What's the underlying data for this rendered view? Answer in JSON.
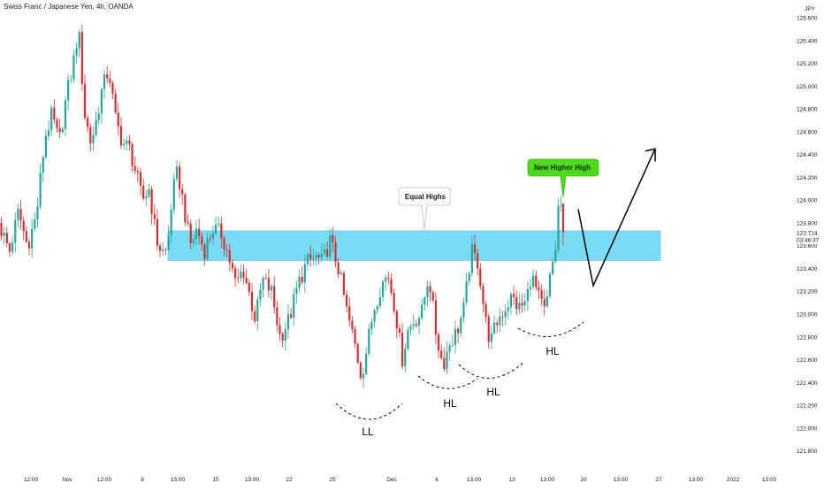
{
  "header": {
    "symbol_title": "Swiss Franc / Japanese Yen, 4h, OANDA"
  },
  "colors": {
    "up": "#26a69a",
    "down": "#d32f2f",
    "zone": "#4dd0f0",
    "callout_green": "#4cdb1c"
  },
  "price_axis": {
    "currency": "JPY",
    "ticks": [
      "125.600",
      "125.400",
      "125.200",
      "125.000",
      "124.800",
      "124.600",
      "124.400",
      "124.200",
      "124.000",
      "123.800",
      "123.600",
      "123.400",
      "123.200",
      "123.000",
      "122.800",
      "122.600",
      "122.400",
      "122.200",
      "122.000",
      "121.800"
    ],
    "last_price": "123.714",
    "countdown": "03:46:37"
  },
  "time_axis": [
    "12:00",
    "Nov",
    "12:00",
    "8",
    "13:00",
    "15",
    "13:00",
    "22",
    "25",
    "Dec",
    "6",
    "13:00",
    "13",
    "13:00",
    "20",
    "13:00",
    "27",
    "13:00",
    "2022",
    "13:00"
  ],
  "annotations": {
    "equal_highs": "Equal Highs",
    "new_higher_high": "New Higher High",
    "ll": "LL",
    "hl1": "HL",
    "hl2": "HL",
    "hl3": "HL"
  },
  "chart_data": {
    "type": "candlestick",
    "title": "Swiss Franc / Japanese Yen, 4h, OANDA",
    "y_unit": "JPY",
    "ylim": [
      121.8,
      125.6
    ],
    "zone": {
      "label": "Equal Highs",
      "low": 123.47,
      "high": 123.73
    },
    "last_price": 123.714,
    "price_path_key_levels": [
      {
        "period": "early Nov",
        "approx_high": 125.5
      },
      {
        "period": "mid Nov",
        "approx_low": 123.5
      },
      {
        "period": "late Nov (LL)",
        "approx_low": 122.15
      },
      {
        "period": "early Dec (HL)",
        "approx_low": 122.4
      },
      {
        "period": "mid Dec (HL)",
        "approx_low": 122.5
      },
      {
        "period": "mid Dec (HL)",
        "approx_low": 122.85
      },
      {
        "period": "mid Dec high",
        "approx_high": 123.97
      }
    ],
    "projection": [
      {
        "stage": "pullback",
        "price": 123.25
      },
      {
        "stage": "target",
        "price": 124.45
      }
    ]
  }
}
